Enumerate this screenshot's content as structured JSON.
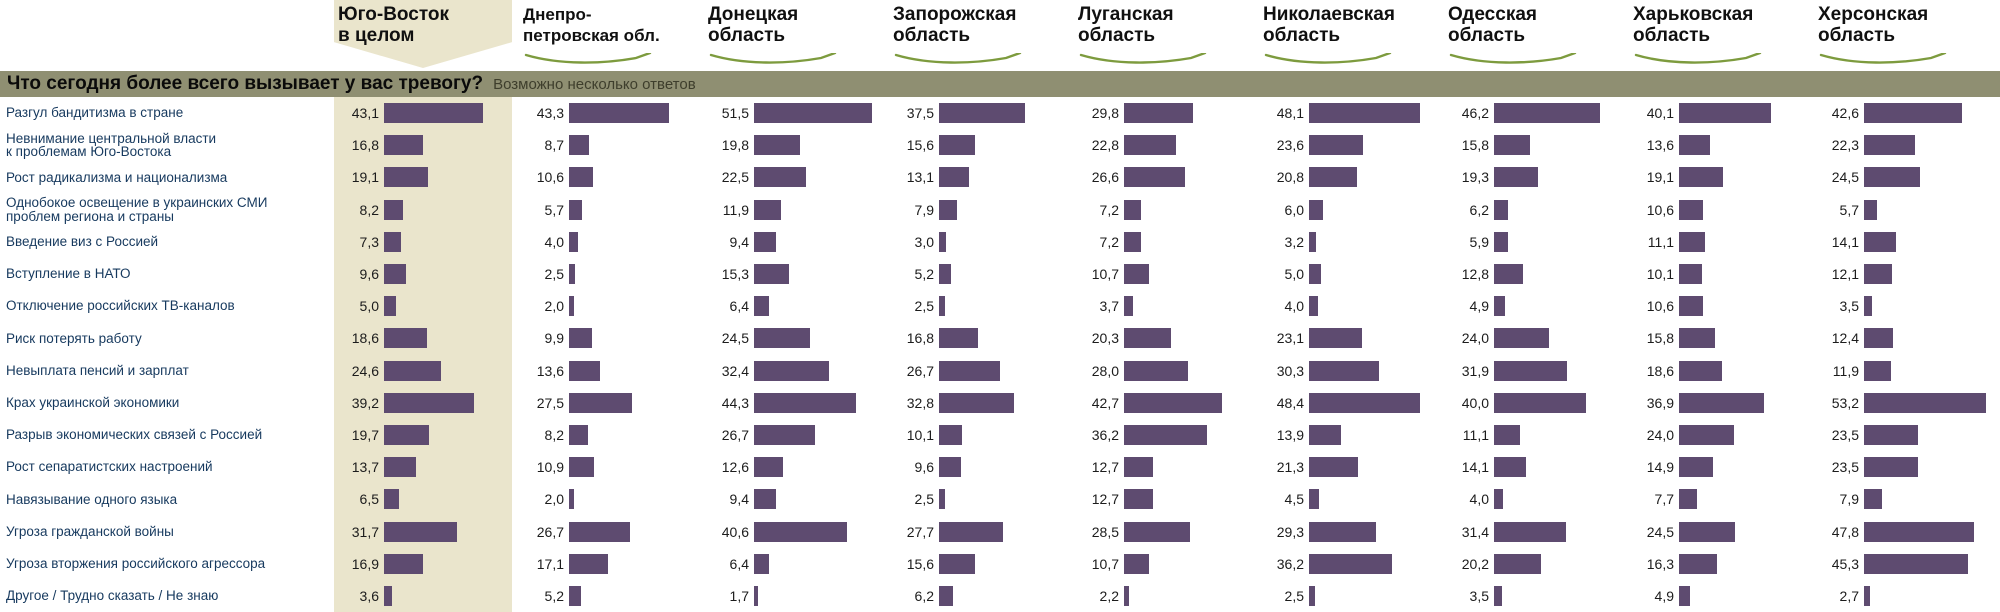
{
  "question": {
    "title": "Что сегодня более всего вызывает у вас тревогу?",
    "note": "Возможно несколько ответов"
  },
  "header": {
    "regions": [
      {
        "line1": "Юго-Восток",
        "line2": "в целом",
        "highlight": true,
        "swoosh": false,
        "small": false
      },
      {
        "line1": "Днепро-",
        "line2": "петровская обл.",
        "highlight": false,
        "swoosh": true,
        "small": true
      },
      {
        "line1": "Донецкая",
        "line2": "область",
        "highlight": false,
        "swoosh": true,
        "small": false
      },
      {
        "line1": "Запорожская",
        "line2": "область",
        "highlight": false,
        "swoosh": true,
        "small": false
      },
      {
        "line1": "Луганская",
        "line2": "область",
        "highlight": false,
        "swoosh": true,
        "small": false
      },
      {
        "line1": "Николаевская",
        "line2": "область",
        "highlight": false,
        "swoosh": true,
        "small": false
      },
      {
        "line1": "Одесская",
        "line2": "область",
        "highlight": false,
        "swoosh": true,
        "small": false
      },
      {
        "line1": "Харьковская",
        "line2": "область",
        "highlight": false,
        "swoosh": true,
        "small": false
      },
      {
        "line1": "Херсонская",
        "line2": "область",
        "highlight": false,
        "swoosh": true,
        "small": false
      }
    ]
  },
  "colors": {
    "bar": "#5e4b70",
    "title_strip_bg": "#8f8f72",
    "highlight_bg": "#eae5cc",
    "swoosh_green": "#7d9b3e",
    "label_navy": "#16395e"
  },
  "chart_data": {
    "type": "bar",
    "orientation": "horizontal",
    "title": "Что сегодня более всего вызывает у вас тревогу?",
    "subtitle": "Возможно несколько ответов",
    "xlim": [
      0,
      55
    ],
    "value_format": "one-decimal-comma",
    "legend_position": "column-headers",
    "grid": false,
    "categories": [
      "Разгул бандитизма в стране",
      "Невнимание центральной власти\nк проблемам Юго-Востока",
      "Рост радикализма и национализма",
      "Однобокое освещение в украинских СМИ\nпроблем региона и страны",
      "Введение виз с Россией",
      "Вступление в НАТО",
      "Отключение российских ТВ-каналов",
      "Риск потерять работу",
      "Невыплата пенсий и зарплат",
      "Крах украинской экономики",
      "Разрыв экономических связей с Россией",
      "Рост сепаратистских настроений",
      "Навязывание одного языка",
      "Угроза гражданской войны",
      "Угроза вторжения российского агрессора",
      "Другое / Трудно сказать / Не знаю"
    ],
    "series": [
      {
        "name": "Юго-Восток в целом",
        "values": [
          43.1,
          16.8,
          19.1,
          8.2,
          7.3,
          9.6,
          5.0,
          18.6,
          24.6,
          39.2,
          19.7,
          13.7,
          6.5,
          31.7,
          16.9,
          3.6
        ]
      },
      {
        "name": "Днепропетровская обл.",
        "values": [
          43.3,
          8.7,
          10.6,
          5.7,
          4.0,
          2.5,
          2.0,
          9.9,
          13.6,
          27.5,
          8.2,
          10.9,
          2.0,
          26.7,
          17.1,
          5.2
        ]
      },
      {
        "name": "Донецкая область",
        "values": [
          51.5,
          19.8,
          22.5,
          11.9,
          9.4,
          15.3,
          6.4,
          24.5,
          32.4,
          44.3,
          26.7,
          12.6,
          9.4,
          40.6,
          6.4,
          1.7
        ]
      },
      {
        "name": "Запорожская область",
        "values": [
          37.5,
          15.6,
          13.1,
          7.9,
          3.0,
          5.2,
          2.5,
          16.8,
          26.7,
          32.8,
          10.1,
          9.6,
          2.5,
          27.7,
          15.6,
          6.2
        ]
      },
      {
        "name": "Луганская область",
        "values": [
          29.8,
          22.8,
          26.6,
          7.2,
          7.2,
          10.7,
          3.7,
          20.3,
          28.0,
          42.7,
          36.2,
          12.7,
          12.7,
          28.5,
          10.7,
          2.2
        ]
      },
      {
        "name": "Николаевская область",
        "values": [
          48.1,
          23.6,
          20.8,
          6.0,
          3.2,
          5.0,
          4.0,
          23.1,
          30.3,
          48.4,
          13.9,
          21.3,
          4.5,
          29.3,
          36.2,
          2.5
        ]
      },
      {
        "name": "Одесская область",
        "values": [
          46.2,
          15.8,
          19.3,
          6.2,
          5.9,
          12.8,
          4.9,
          24.0,
          31.9,
          40.0,
          11.1,
          14.1,
          4.0,
          31.4,
          20.2,
          3.5
        ]
      },
      {
        "name": "Харьковская область",
        "values": [
          40.1,
          13.6,
          19.1,
          10.6,
          11.1,
          10.1,
          10.6,
          15.8,
          18.6,
          36.9,
          24.0,
          14.9,
          7.7,
          24.5,
          16.3,
          4.9
        ]
      },
      {
        "name": "Херсонская область",
        "values": [
          42.6,
          22.3,
          24.5,
          5.7,
          14.1,
          12.1,
          3.5,
          12.4,
          11.9,
          53.2,
          23.5,
          23.5,
          7.9,
          47.8,
          45.3,
          2.7
        ]
      }
    ]
  }
}
